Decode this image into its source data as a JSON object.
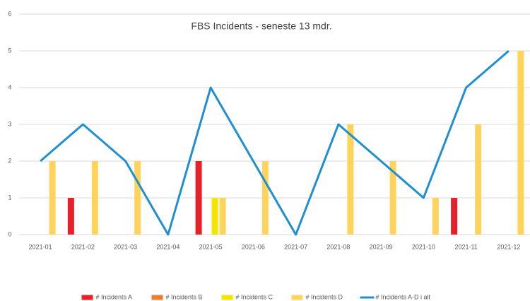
{
  "chart_data": {
    "type": "bar",
    "title": "FBS Incidents - seneste 13 mdr.",
    "categories": [
      "2021-01",
      "2021-02",
      "2021-03",
      "2021-04",
      "2021-05",
      "2021-06",
      "2021-07",
      "2021-08",
      "2021-09",
      "2021-10",
      "2021-11",
      "2021-12"
    ],
    "series": [
      {
        "name": "# Incidents A",
        "color": "#e8202a",
        "values": [
          0,
          1,
          0,
          0,
          2,
          0,
          0,
          0,
          0,
          0,
          1,
          0
        ]
      },
      {
        "name": "# Incidents B",
        "color": "#ed7d31",
        "values": [
          0,
          0,
          0,
          0,
          0,
          0,
          0,
          0,
          0,
          0,
          0,
          0
        ]
      },
      {
        "name": "# Incidents C",
        "color": "#f5e400",
        "values": [
          0,
          0,
          0,
          0,
          1,
          0,
          0,
          0,
          0,
          0,
          0,
          0
        ]
      },
      {
        "name": "# Incidents D",
        "color": "#ffd35c",
        "values": [
          2,
          2,
          2,
          0,
          1,
          2,
          0,
          3,
          2,
          1,
          3,
          5
        ]
      },
      {
        "name": "# Incidents A-D i alt",
        "color": "#1e8fd2",
        "type": "line",
        "values": [
          2,
          3,
          2,
          0,
          4,
          2,
          0,
          3,
          2,
          1,
          4,
          5
        ]
      }
    ],
    "ylim": [
      0,
      6
    ],
    "yticks": [
      0,
      1,
      2,
      3,
      4,
      5,
      6
    ],
    "grid": true,
    "legend": "bottom"
  }
}
